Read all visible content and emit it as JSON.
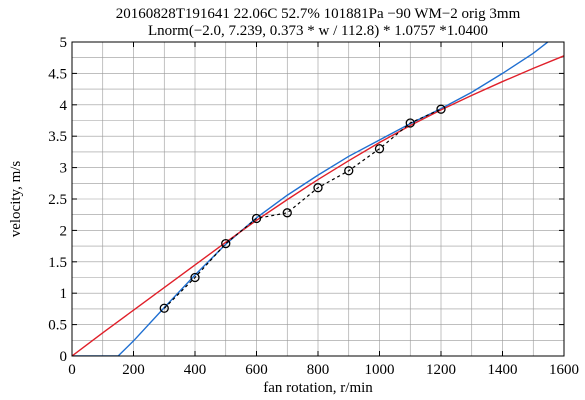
{
  "chart_data": {
    "type": "line",
    "title": "20160828T191641 22.06C 52.7% 101881Pa −90 WM−2 orig 3mm",
    "subtitle": "Lnorm(−2.0, 7.239, 0.373 * w / 112.8) * 1.0757 *1.0400",
    "xlabel": "fan rotation, r/min",
    "ylabel": "velocity, m/s",
    "xlim": [
      0,
      1600
    ],
    "ylim": [
      0,
      5
    ],
    "x_ticks": [
      "0",
      "200",
      "400",
      "600",
      "800",
      "1000",
      "1200",
      "1400",
      "1600"
    ],
    "y_ticks": [
      "0",
      "0.5",
      "1",
      "1.5",
      "2",
      "2.5",
      "3",
      "3.5",
      "4",
      "4.5",
      "5"
    ],
    "grid": true,
    "legend": "none",
    "series": [
      {
        "style": "black dashed line with open circle markers",
        "color": "#000000",
        "x": [
          300,
          400,
          500,
          600,
          700,
          800,
          900,
          1000,
          1100,
          1200
        ],
        "y": [
          0.76,
          1.25,
          1.79,
          2.19,
          2.28,
          2.68,
          2.95,
          3.3,
          3.71,
          3.93
        ]
      },
      {
        "style": "blue solid line",
        "color": "#1f6fd1",
        "x": [
          0,
          100,
          150,
          200,
          300,
          400,
          500,
          600,
          700,
          800,
          900,
          1000,
          1100,
          1200,
          1300,
          1400,
          1500,
          1600
        ],
        "y": [
          0,
          0,
          0,
          0.24,
          0.77,
          1.29,
          1.78,
          2.2,
          2.56,
          2.88,
          3.18,
          3.44,
          3.7,
          3.94,
          4.2,
          4.5,
          4.82,
          5.2
        ]
      },
      {
        "style": "red solid line",
        "color": "#e0202a",
        "x": [
          0,
          100,
          200,
          300,
          400,
          500,
          600,
          700,
          800,
          900,
          1000,
          1100,
          1200,
          1300,
          1400,
          1500,
          1600
        ],
        "y": [
          0,
          0.37,
          0.73,
          1.09,
          1.45,
          1.81,
          2.16,
          2.49,
          2.81,
          3.11,
          3.4,
          3.67,
          3.92,
          4.15,
          4.37,
          4.58,
          4.78
        ]
      }
    ]
  }
}
